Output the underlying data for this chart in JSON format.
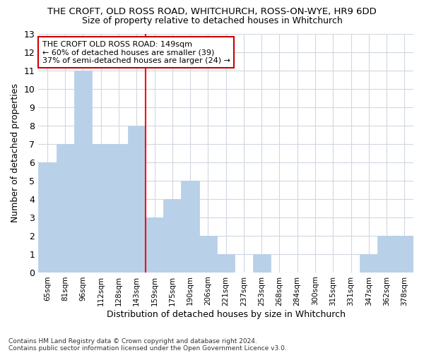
{
  "title": "THE CROFT, OLD ROSS ROAD, WHITCHURCH, ROSS-ON-WYE, HR9 6DD",
  "subtitle": "Size of property relative to detached houses in Whitchurch",
  "xlabel": "Distribution of detached houses by size in Whitchurch",
  "ylabel": "Number of detached properties",
  "categories": [
    "65sqm",
    "81sqm",
    "96sqm",
    "112sqm",
    "128sqm",
    "143sqm",
    "159sqm",
    "175sqm",
    "190sqm",
    "206sqm",
    "221sqm",
    "237sqm",
    "253sqm",
    "268sqm",
    "284sqm",
    "300sqm",
    "315sqm",
    "331sqm",
    "347sqm",
    "362sqm",
    "378sqm"
  ],
  "values": [
    6,
    7,
    11,
    7,
    7,
    8,
    3,
    4,
    5,
    2,
    1,
    0,
    1,
    0,
    0,
    0,
    0,
    0,
    1,
    2,
    2
  ],
  "bar_color": "#b8d0e8",
  "bar_edge_color": "#b8d0e8",
  "grid_color": "#d0d8e0",
  "vline_color": "red",
  "annotation_line1": "THE CROFT OLD ROSS ROAD: 149sqm",
  "annotation_line2": "← 60% of detached houses are smaller (39)",
  "annotation_line3": "37% of semi-detached houses are larger (24) →",
  "annotation_box_color": "white",
  "annotation_box_edge": "#cc0000",
  "ylim": [
    0,
    13
  ],
  "yticks": [
    0,
    1,
    2,
    3,
    4,
    5,
    6,
    7,
    8,
    9,
    10,
    11,
    12,
    13
  ],
  "footnote1": "Contains HM Land Registry data © Crown copyright and database right 2024.",
  "footnote2": "Contains public sector information licensed under the Open Government Licence v3.0.",
  "bg_color": "#ffffff"
}
